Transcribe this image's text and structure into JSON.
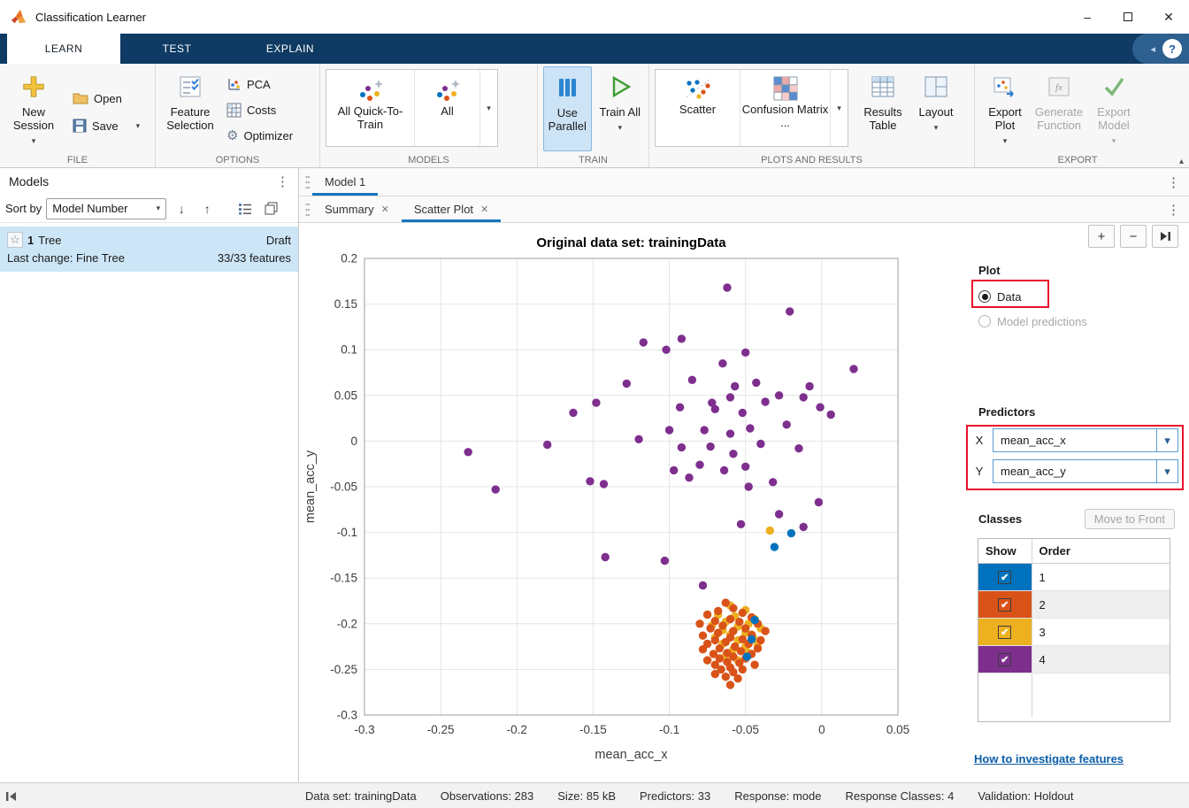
{
  "window": {
    "title": "Classification Learner"
  },
  "tabs": {
    "learn": "LEARN",
    "test": "TEST",
    "explain": "EXPLAIN"
  },
  "icons": {
    "chevron_down": "▾",
    "chevron_up": "▴",
    "chevron_left": "◂",
    "close": "✕",
    "minimize": "–",
    "help": "?",
    "gear": "⚙",
    "overflow": "⋮",
    "sort_desc": "↓",
    "sort_asc": "↑",
    "star": "☆",
    "plus": "+",
    "minus": "−",
    "check": "✔"
  },
  "ribbon": {
    "file": {
      "label": "FILE",
      "new_session": "New Session",
      "open": "Open",
      "save": "Save"
    },
    "options": {
      "label": "OPTIONS",
      "feature_selection": "Feature Selection",
      "pca": "PCA",
      "costs": "Costs",
      "optimizer": "Optimizer"
    },
    "models": {
      "label": "MODELS",
      "gallery": [
        "All Quick-To-Train",
        "All"
      ]
    },
    "train": {
      "label": "TRAIN",
      "use_parallel": "Use Parallel",
      "train_all": "Train All"
    },
    "plots": {
      "label": "PLOTS AND RESULTS",
      "scatter": "Scatter",
      "confusion_matrix": "Confusion Matrix ...",
      "results_table": "Results Table",
      "layout": "Layout"
    },
    "export": {
      "label": "EXPORT",
      "export_plot": "Export Plot",
      "generate_function": "Generate Function",
      "export_model": "Export Model"
    }
  },
  "models_panel": {
    "title": "Models",
    "sort_label": "Sort by",
    "sort_value": "Model Number",
    "model": {
      "index": "1",
      "name": "Tree",
      "status": "Draft",
      "last_change": "Last change: Fine Tree",
      "features": "33/33 features"
    }
  },
  "document": {
    "model_tab": "Model 1",
    "summary_tab": "Summary",
    "scatter_tab": "Scatter Plot"
  },
  "controls": {
    "plot_title": "Plot",
    "radio_data": "Data",
    "radio_model_predictions": "Model predictions",
    "predictors_title": "Predictors",
    "x_label": "X",
    "x_value": "mean_acc_x",
    "y_label": "Y",
    "y_value": "mean_acc_y",
    "classes_title": "Classes",
    "move_to_front": "Move to Front",
    "table_headers": [
      "Show",
      "Order"
    ],
    "classes": [
      {
        "color": "#0072BD",
        "order": "1",
        "checked": true
      },
      {
        "color": "#D95319",
        "order": "2",
        "checked": true
      },
      {
        "color": "#EDB120",
        "order": "3",
        "checked": true
      },
      {
        "color": "#7E2F8E",
        "order": "4",
        "checked": true
      }
    ],
    "link": "How to investigate features"
  },
  "status_bar": {
    "items": [
      "Data set: trainingData",
      "Observations: 283",
      "Size: 85 kB",
      "Predictors: 33",
      "Response: mode",
      "Response Classes: 4",
      "Validation: Holdout"
    ]
  },
  "chart_data": {
    "type": "scatter",
    "title": "Original data set: trainingData",
    "xlabel": "mean_acc_x",
    "ylabel": "mean_acc_y",
    "xlim": [
      -0.3,
      0.05
    ],
    "ylim": [
      -0.3,
      0.2
    ],
    "xticks": [
      -0.3,
      -0.25,
      -0.2,
      -0.15,
      -0.1,
      -0.05,
      0,
      0.05
    ],
    "yticks": [
      -0.3,
      -0.25,
      -0.2,
      -0.15,
      -0.1,
      -0.05,
      0,
      0.05,
      0.1,
      0.15,
      0.2
    ],
    "grid": true,
    "legend": "none",
    "series": [
      {
        "name": "1",
        "color": "#0072BD",
        "points": [
          [
            -0.02,
            -0.101
          ],
          [
            -0.031,
            -0.116
          ],
          [
            -0.044,
            -0.196
          ],
          [
            -0.046,
            -0.217
          ],
          [
            -0.049,
            -0.236
          ]
        ]
      },
      {
        "name": "2",
        "color": "#D95319",
        "points": [
          [
            -0.063,
            -0.177
          ],
          [
            -0.058,
            -0.183
          ],
          [
            -0.068,
            -0.186
          ],
          [
            -0.052,
            -0.188
          ],
          [
            -0.075,
            -0.19
          ],
          [
            -0.046,
            -0.193
          ],
          [
            -0.06,
            -0.195
          ],
          [
            -0.07,
            -0.197
          ],
          [
            -0.054,
            -0.198
          ],
          [
            -0.08,
            -0.2
          ],
          [
            -0.042,
            -0.2
          ],
          [
            -0.065,
            -0.202
          ],
          [
            -0.05,
            -0.205
          ],
          [
            -0.073,
            -0.205
          ],
          [
            -0.058,
            -0.208
          ],
          [
            -0.037,
            -0.208
          ],
          [
            -0.068,
            -0.21
          ],
          [
            -0.046,
            -0.212
          ],
          [
            -0.078,
            -0.213
          ],
          [
            -0.06,
            -0.215
          ],
          [
            -0.052,
            -0.217
          ],
          [
            -0.07,
            -0.218
          ],
          [
            -0.04,
            -0.218
          ],
          [
            -0.063,
            -0.22
          ],
          [
            -0.075,
            -0.222
          ],
          [
            -0.048,
            -0.222
          ],
          [
            -0.057,
            -0.225
          ],
          [
            -0.067,
            -0.227
          ],
          [
            -0.042,
            -0.227
          ],
          [
            -0.078,
            -0.228
          ],
          [
            -0.053,
            -0.23
          ],
          [
            -0.062,
            -0.232
          ],
          [
            -0.071,
            -0.233
          ],
          [
            -0.046,
            -0.233
          ],
          [
            -0.058,
            -0.236
          ],
          [
            -0.067,
            -0.238
          ],
          [
            -0.05,
            -0.238
          ],
          [
            -0.075,
            -0.24
          ],
          [
            -0.062,
            -0.242
          ],
          [
            -0.054,
            -0.243
          ],
          [
            -0.07,
            -0.245
          ],
          [
            -0.044,
            -0.245
          ],
          [
            -0.06,
            -0.248
          ],
          [
            -0.066,
            -0.25
          ],
          [
            -0.052,
            -0.25
          ],
          [
            -0.058,
            -0.253
          ],
          [
            -0.07,
            -0.255
          ],
          [
            -0.063,
            -0.258
          ],
          [
            -0.055,
            -0.26
          ],
          [
            -0.06,
            -0.267
          ]
        ]
      },
      {
        "name": "3",
        "color": "#EDB120",
        "points": [
          [
            -0.034,
            -0.098
          ],
          [
            -0.06,
            -0.18
          ],
          [
            -0.05,
            -0.185
          ],
          [
            -0.068,
            -0.19
          ],
          [
            -0.044,
            -0.195
          ],
          [
            -0.057,
            -0.192
          ],
          [
            -0.063,
            -0.198
          ],
          [
            -0.048,
            -0.2
          ],
          [
            -0.072,
            -0.202
          ],
          [
            -0.055,
            -0.203
          ],
          [
            -0.04,
            -0.205
          ],
          [
            -0.065,
            -0.207
          ],
          [
            -0.05,
            -0.21
          ],
          [
            -0.06,
            -0.212
          ],
          [
            -0.07,
            -0.215
          ],
          [
            -0.045,
            -0.215
          ],
          [
            -0.055,
            -0.218
          ],
          [
            -0.065,
            -0.222
          ],
          [
            -0.042,
            -0.222
          ],
          [
            -0.05,
            -0.225
          ],
          [
            -0.058,
            -0.228
          ],
          [
            -0.048,
            -0.232
          ],
          [
            -0.063,
            -0.235
          ],
          [
            -0.055,
            -0.24
          ]
        ]
      },
      {
        "name": "4",
        "color": "#7E2F8E",
        "points": [
          [
            -0.062,
            0.168
          ],
          [
            -0.021,
            0.142
          ],
          [
            -0.117,
            0.108
          ],
          [
            -0.102,
            0.1
          ],
          [
            -0.092,
            0.112
          ],
          [
            -0.065,
            0.085
          ],
          [
            -0.05,
            0.097
          ],
          [
            0.021,
            0.079
          ],
          [
            -0.128,
            0.063
          ],
          [
            -0.085,
            0.067
          ],
          [
            -0.057,
            0.06
          ],
          [
            -0.043,
            0.064
          ],
          [
            -0.028,
            0.05
          ],
          [
            -0.012,
            0.048
          ],
          [
            -0.008,
            0.06
          ],
          [
            -0.072,
            0.042
          ],
          [
            -0.06,
            0.048
          ],
          [
            -0.163,
            0.031
          ],
          [
            -0.148,
            0.042
          ],
          [
            -0.093,
            0.037
          ],
          [
            -0.07,
            0.035
          ],
          [
            -0.052,
            0.031
          ],
          [
            -0.037,
            0.043
          ],
          [
            -0.001,
            0.037
          ],
          [
            0.006,
            0.029
          ],
          [
            -0.047,
            0.014
          ],
          [
            -0.06,
            0.008
          ],
          [
            -0.077,
            0.012
          ],
          [
            -0.1,
            0.012
          ],
          [
            -0.12,
            0.002
          ],
          [
            -0.023,
            0.018
          ],
          [
            -0.04,
            -0.003
          ],
          [
            -0.015,
            -0.008
          ],
          [
            -0.18,
            -0.004
          ],
          [
            -0.232,
            -0.012
          ],
          [
            -0.092,
            -0.007
          ],
          [
            -0.073,
            -0.006
          ],
          [
            -0.058,
            -0.014
          ],
          [
            -0.05,
            -0.028
          ],
          [
            -0.064,
            -0.032
          ],
          [
            -0.08,
            -0.026
          ],
          [
            -0.097,
            -0.032
          ],
          [
            -0.214,
            -0.053
          ],
          [
            -0.152,
            -0.044
          ],
          [
            -0.143,
            -0.047
          ],
          [
            -0.087,
            -0.04
          ],
          [
            -0.048,
            -0.05
          ],
          [
            -0.032,
            -0.045
          ],
          [
            -0.002,
            -0.067
          ],
          [
            -0.028,
            -0.08
          ],
          [
            -0.053,
            -0.091
          ],
          [
            -0.012,
            -0.094
          ],
          [
            -0.142,
            -0.127
          ],
          [
            -0.103,
            -0.131
          ],
          [
            -0.078,
            -0.158
          ]
        ]
      }
    ]
  }
}
